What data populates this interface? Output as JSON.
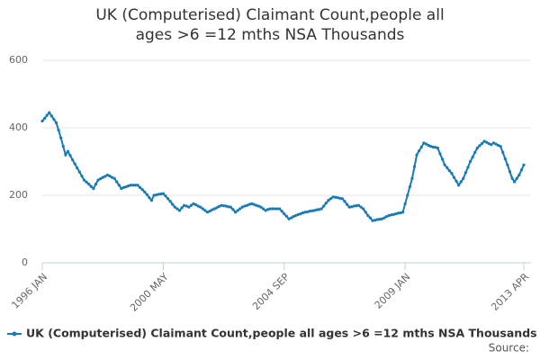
{
  "chart_data": {
    "type": "line",
    "title": "UK (Computerised) Claimant Count,people all ages >6 =12 mths NSA Thousands",
    "source_label": "Source:",
    "categories": [
      "1996 JAN",
      null,
      null,
      null,
      null,
      null,
      null,
      null,
      null,
      null,
      null,
      null,
      null,
      null,
      null,
      null,
      null,
      null,
      null,
      null,
      null,
      null,
      null,
      null,
      null,
      null,
      null,
      null,
      null,
      null,
      null,
      null,
      null,
      null,
      null,
      null,
      null,
      null,
      null,
      null,
      null,
      null,
      null,
      null,
      null,
      null,
      null,
      null,
      null,
      null,
      null,
      null,
      "2000 MAY",
      null,
      null,
      null,
      null,
      null,
      null,
      null,
      null,
      null,
      null,
      null,
      null,
      null,
      null,
      null,
      null,
      null,
      null,
      null,
      null,
      null,
      null,
      null,
      null,
      null,
      null,
      null,
      null,
      null,
      null,
      null,
      null,
      null,
      null,
      null,
      null,
      null,
      null,
      null,
      null,
      null,
      null,
      null,
      null,
      null,
      null,
      null,
      null,
      null,
      null,
      null,
      "2004 SEP",
      null,
      null,
      null,
      null,
      null,
      null,
      null,
      null,
      null,
      null,
      null,
      null,
      null,
      null,
      null,
      null,
      null,
      null,
      null,
      null,
      null,
      null,
      null,
      null,
      null,
      null,
      null,
      null,
      null,
      null,
      null,
      null,
      null,
      null,
      null,
      null,
      null,
      null,
      null,
      null,
      null,
      null,
      null,
      null,
      null,
      null,
      null,
      null,
      null,
      null,
      null,
      "2009 JAN",
      null,
      null,
      null,
      null,
      null,
      null,
      null,
      null,
      null,
      null,
      null,
      null,
      null,
      null,
      null,
      null,
      null,
      null,
      null,
      null,
      null,
      null,
      null,
      null,
      null,
      null,
      null,
      null,
      null,
      null,
      null,
      null,
      null,
      null,
      null,
      null,
      null,
      null,
      null,
      null,
      null,
      null,
      null,
      null,
      null,
      null,
      null,
      null,
      null,
      null,
      "2013 APR"
    ],
    "series": [
      {
        "name": "UK (Computerised) Claimant Count,people all ages >6 =12 mths NSA Thousands",
        "color": "#1a7ab5",
        "values": [
          420,
          428,
          437,
          445,
          435,
          425,
          415,
          393,
          370,
          345,
          320,
          330,
          318,
          305,
          293,
          281,
          269,
          257,
          245,
          239,
          233,
          226,
          220,
          233,
          245,
          249,
          253,
          256,
          260,
          257,
          253,
          250,
          240,
          230,
          220,
          223,
          225,
          228,
          230,
          230,
          230,
          230,
          223,
          217,
          210,
          202,
          193,
          185,
          200,
          201,
          203,
          204,
          205,
          198,
          190,
          182,
          173,
          165,
          160,
          155,
          163,
          170,
          168,
          165,
          170,
          175,
          172,
          168,
          165,
          160,
          155,
          150,
          153,
          157,
          160,
          163,
          167,
          170,
          169,
          168,
          166,
          165,
          158,
          150,
          155,
          160,
          165,
          168,
          170,
          173,
          175,
          173,
          170,
          168,
          165,
          160,
          155,
          158,
          160,
          160,
          160,
          160,
          160,
          153,
          145,
          138,
          130,
          133,
          137,
          140,
          143,
          145,
          148,
          150,
          151,
          153,
          154,
          155,
          157,
          158,
          160,
          168,
          177,
          185,
          190,
          195,
          194,
          193,
          191,
          190,
          182,
          173,
          165,
          166,
          168,
          169,
          170,
          165,
          160,
          150,
          140,
          133,
          125,
          126,
          128,
          129,
          130,
          133,
          137,
          140,
          142,
          143,
          145,
          147,
          148,
          150,
          175,
          200,
          225,
          250,
          285,
          320,
          332,
          343,
          355,
          352,
          348,
          345,
          343,
          342,
          340,
          323,
          307,
          290,
          282,
          273,
          265,
          253,
          242,
          230,
          240,
          250,
          267,
          283,
          300,
          313,
          327,
          340,
          347,
          353,
          360,
          357,
          353,
          350,
          355,
          352,
          348,
          345,
          327,
          308,
          290,
          270,
          250,
          240,
          250,
          260,
          275,
          290
        ]
      }
    ],
    "ylim": [
      0,
      600
    ],
    "yticks": [
      0,
      200,
      400,
      600
    ],
    "grid": true,
    "legend": "bottom"
  }
}
